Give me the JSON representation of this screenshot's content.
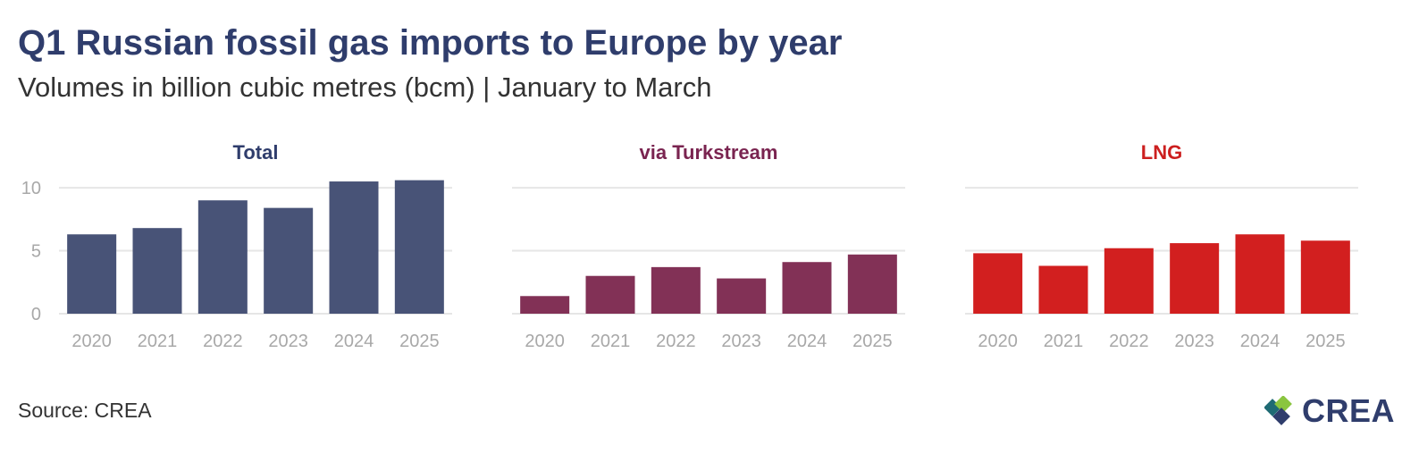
{
  "title": "Q1 Russian fossil gas imports to Europe by year",
  "subtitle": "Volumes in billion cubic metres (bcm) | January to March",
  "source": "Source: CREA",
  "logo_text": "CREA",
  "logo_colors": [
    "#1f6b74",
    "#8ac53f",
    "#2f3d6c"
  ],
  "chart_data": [
    {
      "type": "bar",
      "title": "Total",
      "title_color": "#2f3d6c",
      "color": "#485377",
      "categories": [
        "2020",
        "2021",
        "2022",
        "2023",
        "2024",
        "2025"
      ],
      "values": [
        6.3,
        6.8,
        9.0,
        8.4,
        10.5,
        10.6
      ],
      "ylim": [
        0,
        11
      ],
      "yticks": [
        "0",
        "5",
        "10"
      ],
      "grid": true
    },
    {
      "type": "bar",
      "title": "via Turkstream",
      "title_color": "#7a2450",
      "color": "#823156",
      "categories": [
        "2020",
        "2021",
        "2022",
        "2023",
        "2024",
        "2025"
      ],
      "values": [
        1.4,
        3.0,
        3.7,
        2.8,
        4.1,
        4.7
      ],
      "ylim": [
        0,
        11
      ],
      "yticks": [],
      "grid": true
    },
    {
      "type": "bar",
      "title": "LNG",
      "title_color": "#cc1f1f",
      "color": "#d21f1f",
      "categories": [
        "2020",
        "2021",
        "2022",
        "2023",
        "2024",
        "2025"
      ],
      "values": [
        4.8,
        3.8,
        5.2,
        5.6,
        6.3,
        5.8
      ],
      "ylim": [
        0,
        11
      ],
      "yticks": [],
      "grid": true
    }
  ]
}
